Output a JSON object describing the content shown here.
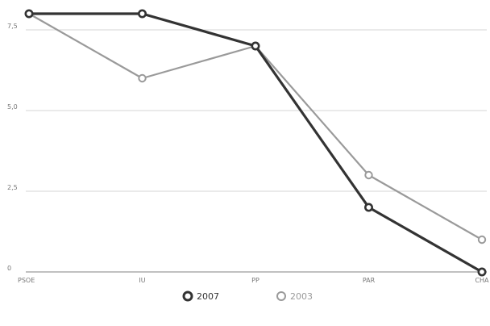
{
  "chart_data": {
    "type": "line",
    "title": "",
    "xlabel": "",
    "ylabel": "",
    "categories": [
      "PSOE",
      "IU",
      "PP",
      "PAR",
      "CHA"
    ],
    "ylim": [
      0,
      8
    ],
    "yticks": [
      {
        "value": 0,
        "label": "0"
      },
      {
        "value": 2.5,
        "label": "2,5"
      },
      {
        "value": 5,
        "label": "5,0"
      },
      {
        "value": 7.5,
        "label": "7,5"
      }
    ],
    "grid": true,
    "legend_position": "bottom-center",
    "series": [
      {
        "name": "2007",
        "color": "#333333",
        "values": [
          8,
          8,
          7,
          2,
          0
        ]
      },
      {
        "name": "2003",
        "color": "#9a9a9a",
        "values": [
          8,
          6,
          7,
          3,
          1
        ]
      }
    ]
  }
}
